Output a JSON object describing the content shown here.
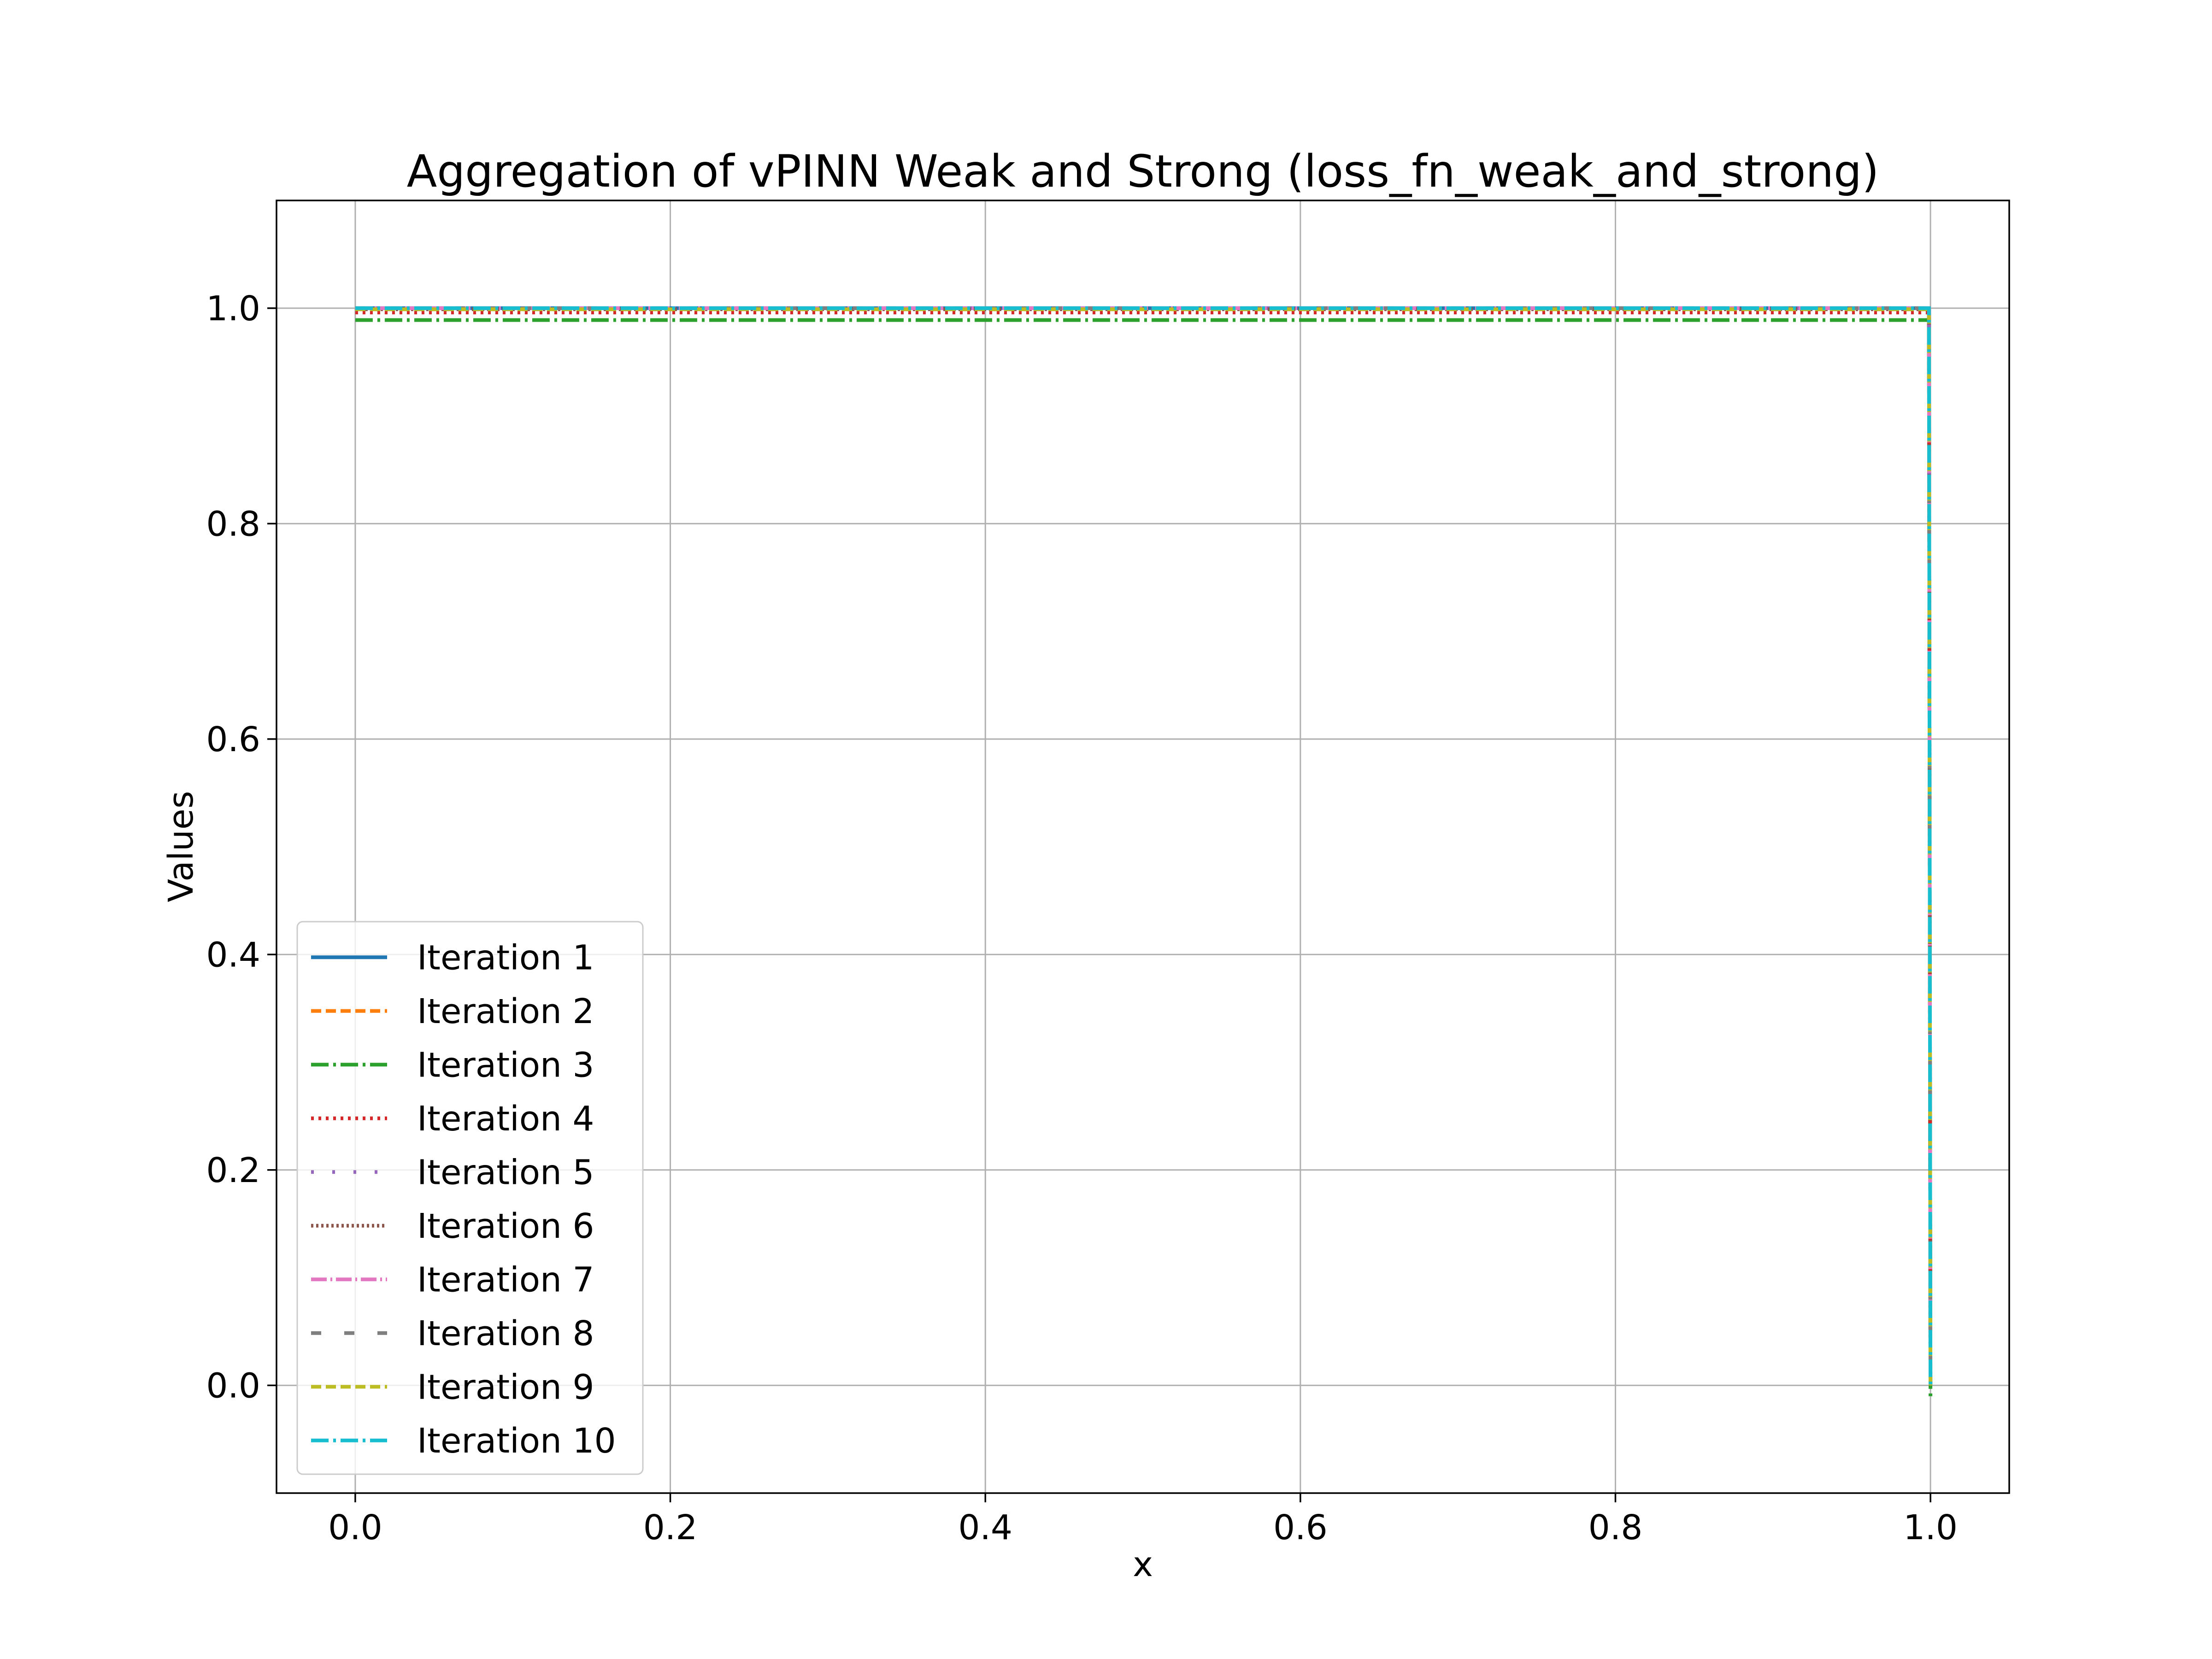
{
  "chart_data": {
    "type": "line",
    "title": "Aggregation of vPINN Weak and Strong (loss_fn_weak_and_strong)",
    "xlabel": "x",
    "ylabel": "Values",
    "xlim": [
      -0.05,
      1.05
    ],
    "ylim": [
      -0.1,
      1.1
    ],
    "xticks": [
      0.0,
      0.2,
      0.4,
      0.6,
      0.8,
      1.0
    ],
    "xtick_labels": [
      "0.0",
      "0.2",
      "0.4",
      "0.6",
      "0.8",
      "1.0"
    ],
    "yticks": [
      0.0,
      0.2,
      0.4,
      0.6,
      0.8,
      1.0
    ],
    "ytick_labels": [
      "0.0",
      "0.2",
      "0.4",
      "0.6",
      "0.8",
      "1.0"
    ],
    "grid": true,
    "legend_position": "lower-left",
    "series": [
      {
        "name": "Iteration 1",
        "color": "#1f77b4",
        "linestyle": "solid",
        "x": [
          0.0,
          0.999,
          1.0
        ],
        "y": [
          1.0,
          1.0,
          0.0
        ]
      },
      {
        "name": "Iteration 2",
        "color": "#ff7f0e",
        "linestyle": "dashed",
        "x": [
          0.0,
          0.999,
          1.0
        ],
        "y": [
          0.999,
          0.999,
          0.0
        ]
      },
      {
        "name": "Iteration 3",
        "color": "#2ca02c",
        "linestyle": "dashdot",
        "x": [
          0.0,
          0.999,
          1.0
        ],
        "y": [
          0.989,
          0.989,
          -0.012
        ]
      },
      {
        "name": "Iteration 4",
        "color": "#d62728",
        "linestyle": "dotted",
        "x": [
          0.0,
          0.999,
          1.0
        ],
        "y": [
          0.996,
          0.996,
          0.0
        ]
      },
      {
        "name": "Iteration 5",
        "color": "#9467bd",
        "linestyle": "loosely-dotted",
        "x": [
          0.0,
          0.999,
          1.0
        ],
        "y": [
          1.0,
          1.0,
          0.0
        ]
      },
      {
        "name": "Iteration 6",
        "color": "#8c564b",
        "linestyle": "densely-dotted",
        "x": [
          0.0,
          0.999,
          1.0
        ],
        "y": [
          0.999,
          0.999,
          0.0
        ]
      },
      {
        "name": "Iteration 7",
        "color": "#e377c2",
        "linestyle": "long-dashdot",
        "x": [
          0.0,
          0.999,
          1.0
        ],
        "y": [
          1.0,
          1.0,
          0.0
        ]
      },
      {
        "name": "Iteration 8",
        "color": "#7f7f7f",
        "linestyle": "loosely-dashed",
        "x": [
          0.0,
          0.999,
          1.0
        ],
        "y": [
          1.0,
          1.0,
          0.0
        ]
      },
      {
        "name": "Iteration 9",
        "color": "#bcbd22",
        "linestyle": "dashed",
        "x": [
          0.0,
          0.999,
          1.0
        ],
        "y": [
          0.999,
          0.999,
          0.0
        ]
      },
      {
        "name": "Iteration 10",
        "color": "#17becf",
        "linestyle": "dashdot",
        "x": [
          0.0,
          0.999,
          1.0
        ],
        "y": [
          1.0,
          1.0,
          0.0
        ]
      }
    ]
  }
}
